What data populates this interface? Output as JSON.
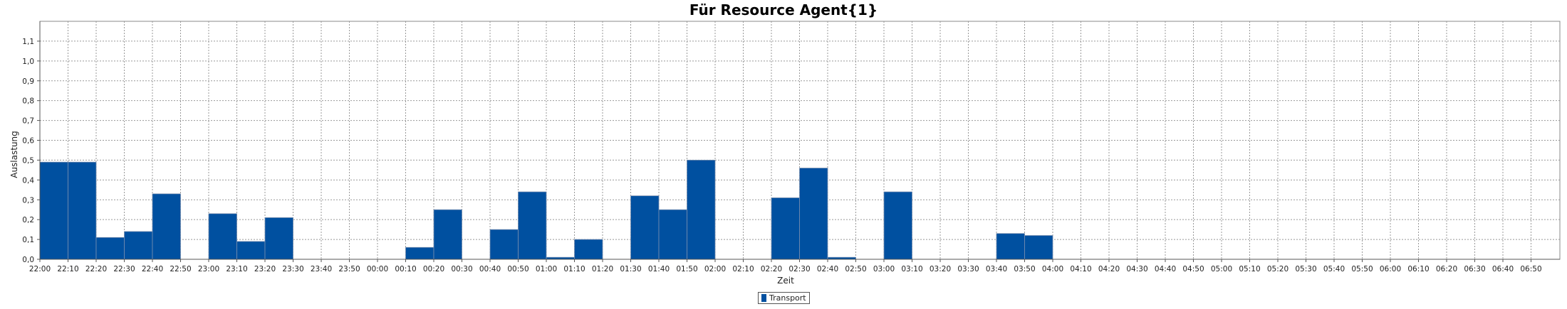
{
  "chart_data": {
    "type": "bar",
    "title": "Für Resource Agent{1}",
    "xlabel": "Zeit",
    "ylabel": "Auslastung",
    "ylim": [
      0,
      1.2
    ],
    "yticks": [
      "0,0",
      "0,1",
      "0,2",
      "0,3",
      "0,4",
      "0,5",
      "0,6",
      "0,7",
      "0,8",
      "0,9",
      "1,0",
      "1,1"
    ],
    "categories": [
      "22:00",
      "22:10",
      "22:20",
      "22:30",
      "22:40",
      "22:50",
      "23:00",
      "23:10",
      "23:20",
      "23:30",
      "23:40",
      "23:50",
      "00:00",
      "00:10",
      "00:20",
      "00:30",
      "00:40",
      "00:50",
      "01:00",
      "01:10",
      "01:20",
      "01:30",
      "01:40",
      "01:50",
      "02:00",
      "02:10",
      "02:20",
      "02:30",
      "02:40",
      "02:50",
      "03:00",
      "03:10",
      "03:20",
      "03:30",
      "03:40",
      "03:50",
      "04:00",
      "04:10",
      "04:20",
      "04:30",
      "04:40",
      "04:50",
      "05:00",
      "05:10",
      "05:20",
      "05:30",
      "05:40",
      "05:50",
      "06:00",
      "06:10",
      "06:20",
      "06:30",
      "06:40",
      "06:50"
    ],
    "series": [
      {
        "name": "Transport",
        "color": "#0050a0",
        "values": [
          0.49,
          0.49,
          0.11,
          0.14,
          0.33,
          0,
          0.23,
          0.09,
          0.21,
          0,
          0,
          0,
          0,
          0.06,
          0.25,
          0,
          0.15,
          0.34,
          0.01,
          0.1,
          0,
          0.32,
          0.25,
          0.5,
          0,
          0,
          0.31,
          0.46,
          0.01,
          0,
          0.34,
          0,
          0,
          0,
          0.13,
          0.12,
          0,
          0,
          0,
          0,
          0,
          0,
          0,
          0,
          0,
          0,
          0,
          0,
          0,
          0,
          0,
          0,
          0,
          0
        ]
      }
    ],
    "grid": true,
    "legend": "bottom-center"
  }
}
